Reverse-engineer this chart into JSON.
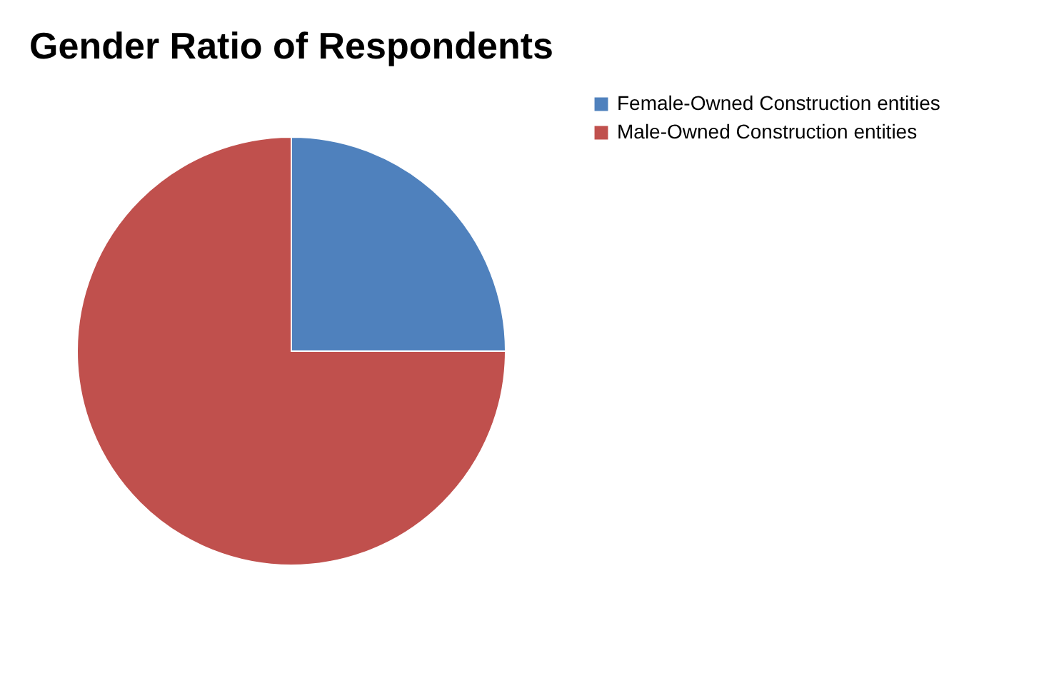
{
  "chart_data": {
    "type": "pie",
    "title": "Gender Ratio of Respondents",
    "categories": [
      "Female-Owned Construction entities",
      "Male-Owned Construction entities"
    ],
    "values": [
      25,
      75
    ],
    "colors": [
      "#4f81bd",
      "#c0504d"
    ],
    "legend": "right"
  }
}
